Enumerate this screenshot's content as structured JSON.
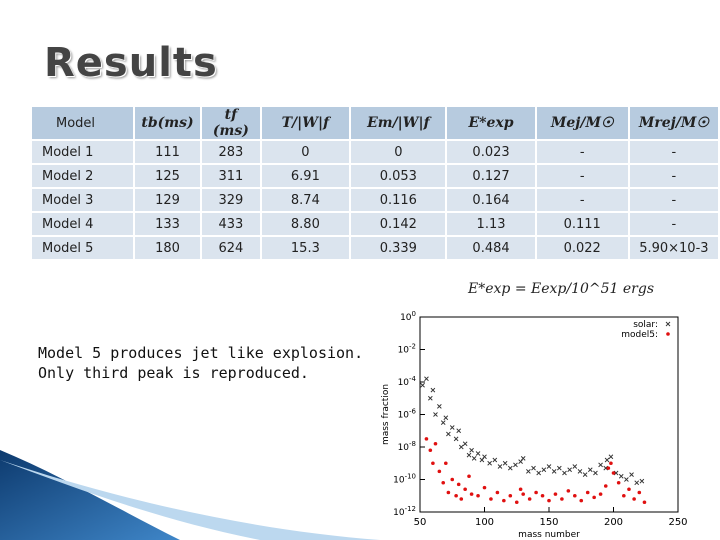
{
  "title": "Results",
  "table": {
    "headers": [
      "Model",
      "tb(ms)",
      "tf (ms)",
      "T/|W|f",
      "Em/|W|f",
      "E*exp",
      "Mej/M☉",
      "Mrej/M☉"
    ],
    "rows": [
      [
        "Model 1",
        "111",
        "283",
        "0",
        "0",
        "0.023",
        "-",
        "-"
      ],
      [
        "Model 2",
        "125",
        "311",
        "6.91",
        "0.053",
        "0.127",
        "-",
        "-"
      ],
      [
        "Model 3",
        "129",
        "329",
        "8.74",
        "0.116",
        "0.164",
        "-",
        "-"
      ],
      [
        "Model 4",
        "133",
        "433",
        "8.80",
        "0.142",
        "1.13",
        "0.111",
        "-"
      ],
      [
        "Model 5",
        "180",
        "624",
        "15.3",
        "0.339",
        "0.484",
        "0.022",
        "5.90×10-3"
      ]
    ]
  },
  "footnote": "E*exp = Eexp/10^51 ergs",
  "note": {
    "line1": "Model 5 produces jet like explosion.",
    "line2": "Only third peak is reproduced."
  },
  "colors": {
    "header": "#b7cbdf",
    "cell": "#dbe4ee",
    "solar": "#333333",
    "model5": "#e01010"
  },
  "chart_data": {
    "type": "scatter",
    "xlabel": "mass number",
    "ylabel": "mass fraction",
    "xlim": [
      50,
      250
    ],
    "ylim_log10": [
      -12,
      0
    ],
    "xticks": [
      "50",
      "100",
      "150",
      "200",
      "250"
    ],
    "yticks": [
      "10^0",
      "10^-2",
      "10^-4",
      "10^-6",
      "10^-8",
      "10^-10",
      "10^-12"
    ],
    "legend_position": "top-right",
    "series": [
      {
        "name": "solar:",
        "x": [
          52,
          55,
          58,
          60,
          62,
          65,
          68,
          70,
          72,
          75,
          78,
          80,
          82,
          85,
          88,
          90,
          92,
          95,
          98,
          100,
          104,
          108,
          112,
          116,
          120,
          124,
          128,
          130,
          134,
          138,
          142,
          146,
          150,
          154,
          158,
          162,
          166,
          170,
          174,
          178,
          182,
          186,
          190,
          194,
          195,
          198,
          202,
          206,
          210,
          214,
          218,
          222
        ],
        "log10y": [
          -4.2,
          -3.8,
          -5.0,
          -4.5,
          -6.0,
          -5.5,
          -6.5,
          -6.2,
          -7.2,
          -6.8,
          -7.5,
          -7.0,
          -8.0,
          -7.8,
          -8.5,
          -8.2,
          -8.7,
          -8.4,
          -8.8,
          -8.6,
          -9.0,
          -8.8,
          -9.2,
          -9.0,
          -9.3,
          -9.1,
          -8.9,
          -8.7,
          -9.5,
          -9.3,
          -9.6,
          -9.4,
          -9.2,
          -9.5,
          -9.3,
          -9.6,
          -9.4,
          -9.2,
          -9.5,
          -9.7,
          -9.4,
          -9.6,
          -9.1,
          -9.3,
          -8.8,
          -8.6,
          -9.6,
          -9.8,
          -10.0,
          -9.7,
          -10.2,
          -10.1
        ]
      },
      {
        "name": "model5:",
        "x": [
          55,
          58,
          60,
          62,
          65,
          68,
          70,
          72,
          75,
          78,
          80,
          82,
          85,
          88,
          90,
          95,
          100,
          105,
          110,
          115,
          120,
          125,
          128,
          130,
          135,
          140,
          145,
          150,
          155,
          160,
          165,
          170,
          175,
          180,
          185,
          190,
          194,
          196,
          198,
          200,
          204,
          208,
          212,
          216,
          220,
          224
        ],
        "log10y": [
          -7.5,
          -8.2,
          -9.0,
          -7.8,
          -9.5,
          -10.2,
          -9.0,
          -10.8,
          -10.0,
          -11.0,
          -10.3,
          -11.2,
          -10.6,
          -9.8,
          -10.9,
          -11.0,
          -10.5,
          -11.2,
          -10.8,
          -11.3,
          -11.0,
          -11.4,
          -10.6,
          -10.9,
          -11.2,
          -10.8,
          -11.0,
          -11.3,
          -10.9,
          -11.2,
          -10.7,
          -11.0,
          -11.3,
          -10.8,
          -11.1,
          -10.9,
          -10.4,
          -9.3,
          -9.0,
          -9.6,
          -10.2,
          -11.0,
          -10.6,
          -11.2,
          -10.8,
          -11.4
        ]
      }
    ]
  }
}
